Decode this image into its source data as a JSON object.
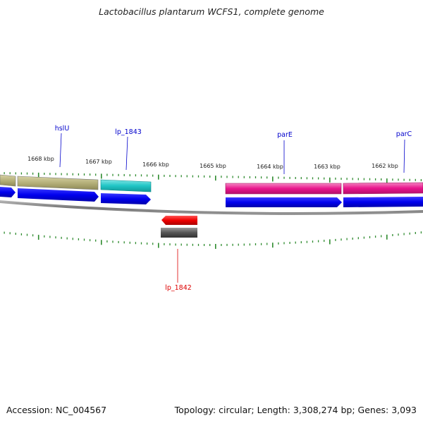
{
  "title": "Lactobacillus plantarum WCFS1, complete genome",
  "footer": {
    "accession": "Accession: NC_004567",
    "summary": "Topology: circular; Length: 3,308,274 bp; Genes: 3,093"
  },
  "colors": {
    "gene_label_forward": "#0000cc",
    "gene_label_reverse": "#dd0000",
    "cds_blue": "#0000ee",
    "tick_green": "#2e8b2e",
    "backbone": "#888888",
    "cog_olive": "#b5b07a",
    "cog_cyan": "#20c5c5",
    "cog_magenta": "#e8158c",
    "cds_red": "#ee0000",
    "cog_gray": "#555555"
  },
  "scale": {
    "unit": "kbp",
    "labels": [
      "1668 kbp",
      "1667 kbp",
      "1666 kbp",
      "1665 kbp",
      "1664 kbp",
      "1663 kbp",
      "1662 kbp"
    ]
  },
  "genes": [
    {
      "name": "hslU",
      "strand": "forward"
    },
    {
      "name": "lp_1843",
      "strand": "forward"
    },
    {
      "name": "parE",
      "strand": "forward"
    },
    {
      "name": "parC",
      "strand": "forward"
    },
    {
      "name": "lp_1842",
      "strand": "reverse"
    }
  ]
}
